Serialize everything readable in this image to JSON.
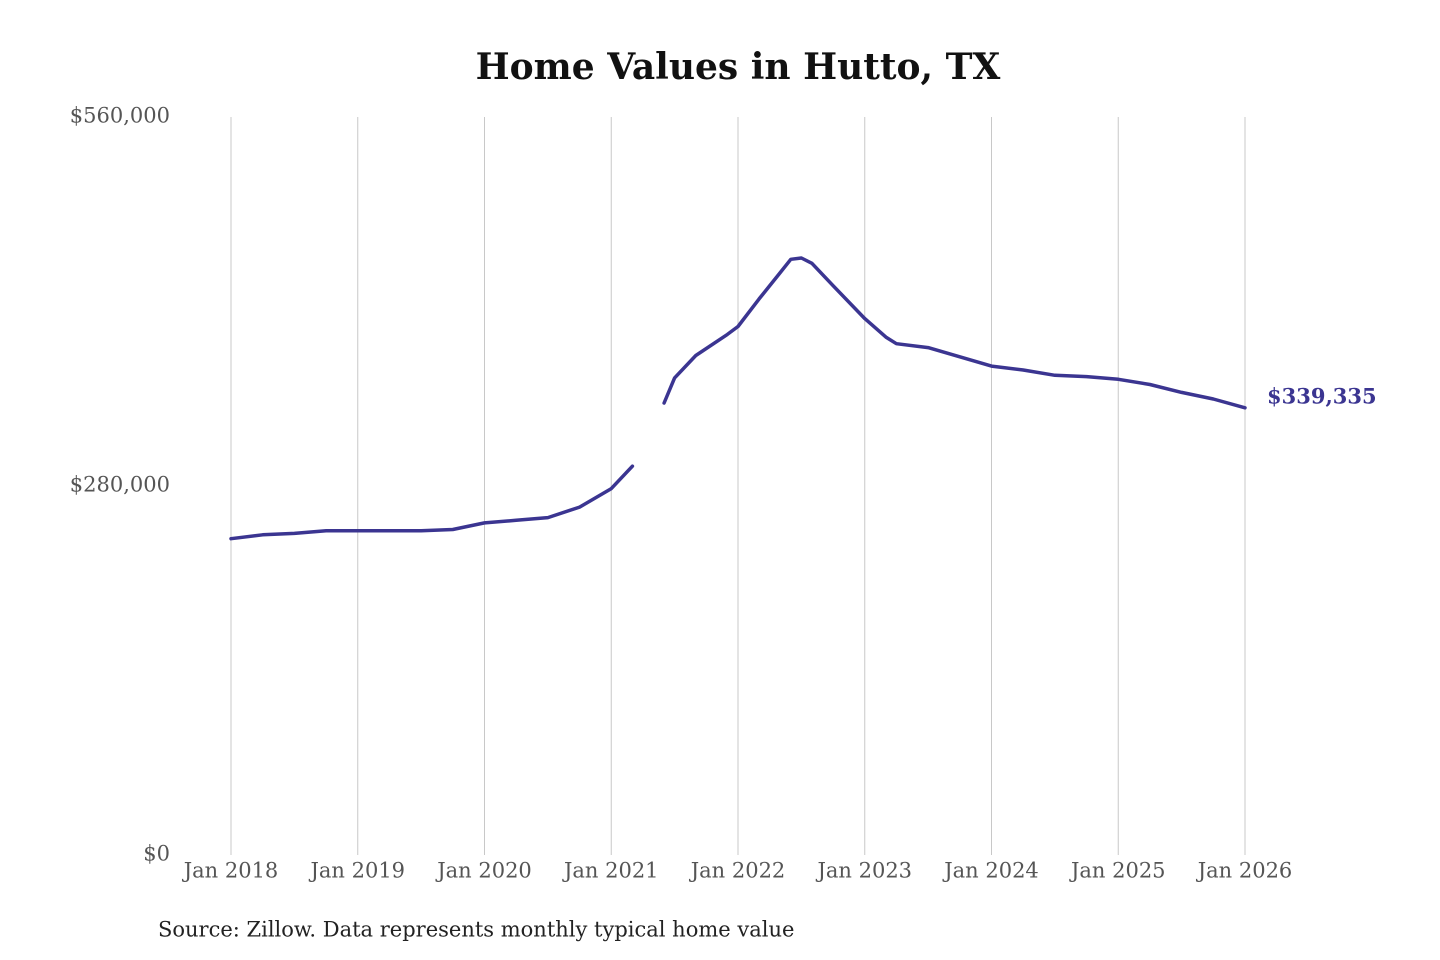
{
  "chart_data": {
    "type": "line",
    "title": "Home Values in Hutto, TX",
    "source": "Source: Zillow. Data represents monthly typical home value",
    "x": [
      "2018-01",
      "2018-04",
      "2018-07",
      "2018-10",
      "2019-01",
      "2019-04",
      "2019-07",
      "2019-10",
      "2020-01",
      "2020-04",
      "2020-07",
      "2020-10",
      "2021-01",
      "2021-03",
      "2021-04",
      "2021-06",
      "2021-07",
      "2021-09",
      "2021-12",
      "2022-01",
      "2022-03",
      "2022-05",
      "2022-06",
      "2022-07",
      "2022-08",
      "2022-10",
      "2023-01",
      "2023-03",
      "2023-04",
      "2023-07",
      "2023-10",
      "2024-01",
      "2024-04",
      "2024-07",
      "2024-10",
      "2025-01",
      "2025-04",
      "2025-07",
      "2025-10",
      "2026-01"
    ],
    "series": [
      {
        "name": "Home value",
        "color": "#3b3591",
        "values": [
          240000,
          243000,
          244000,
          246000,
          246000,
          246000,
          246000,
          247000,
          252000,
          254000,
          256000,
          264000,
          278000,
          295000,
          null,
          343000,
          362000,
          379000,
          395000,
          401000,
          422000,
          442000,
          452000,
          453000,
          449000,
          432000,
          407000,
          393000,
          388000,
          385000,
          378000,
          371000,
          368000,
          364000,
          363000,
          361000,
          357000,
          351000,
          346000,
          339335
        ],
        "value_labels": [
          null,
          null,
          null,
          null,
          null,
          null,
          null,
          null,
          null,
          null,
          null,
          null,
          null,
          null,
          null,
          null,
          null,
          null,
          null,
          null,
          null,
          null,
          null,
          null,
          null,
          null,
          null,
          null,
          null,
          null,
          null,
          null,
          null,
          null,
          null,
          null,
          null,
          null,
          null,
          "$339,335"
        ]
      }
    ],
    "xlim": [
      "2018-01",
      "2026-01"
    ],
    "xticks": [
      {
        "value": "2018-01",
        "label": "Jan 2018"
      },
      {
        "value": "2019-01",
        "label": "Jan 2019"
      },
      {
        "value": "2020-01",
        "label": "Jan 2020"
      },
      {
        "value": "2021-01",
        "label": "Jan 2021"
      },
      {
        "value": "2022-01",
        "label": "Jan 2022"
      },
      {
        "value": "2023-01",
        "label": "Jan 2023"
      },
      {
        "value": "2024-01",
        "label": "Jan 2024"
      },
      {
        "value": "2025-01",
        "label": "Jan 2025"
      },
      {
        "value": "2026-01",
        "label": "Jan 2026"
      }
    ],
    "ylim": [
      0,
      560000
    ],
    "yticks": [
      {
        "value": 0,
        "label": "$0"
      },
      {
        "value": 280000,
        "label": "$280,000"
      },
      {
        "value": 560000,
        "label": "$560,000"
      }
    ],
    "grid": "x"
  }
}
